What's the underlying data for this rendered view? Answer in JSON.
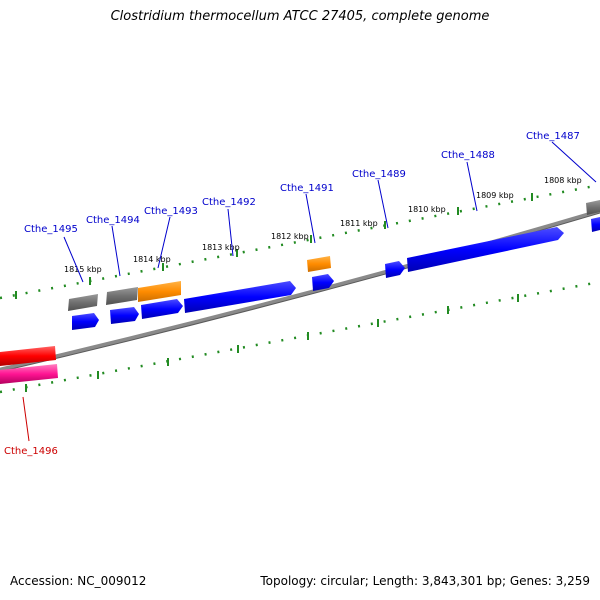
{
  "title": "Clostridium thermocellum ATCC 27405, complete genome",
  "footer": {
    "accession": "Accession: NC_009012",
    "summary": "Topology: circular; Length: 3,843,301 bp; Genes: 3,259"
  },
  "colors": {
    "backbone": "#808080",
    "tick": "#228B22",
    "cds_forward": "#0000ff",
    "cds_reverse_gray": "#777777",
    "cds_orange": "#ff8c00",
    "gene_red": "#ff0000",
    "gene_pink": "#ff1493",
    "label_blue": "#0000cc",
    "label_red": "#cc0000"
  },
  "ticks_kbp": [
    "1815 kbp",
    "1814 kbp",
    "1813 kbp",
    "1812 kbp",
    "1811 kbp",
    "1810 kbp",
    "1809 kbp",
    "1808 kbp"
  ],
  "genes": [
    {
      "label": "Cthe_1495",
      "color": "blue"
    },
    {
      "label": "Cthe_1494",
      "color": "blue"
    },
    {
      "label": "Cthe_1493",
      "color": "blue"
    },
    {
      "label": "Cthe_1492",
      "color": "blue"
    },
    {
      "label": "Cthe_1491",
      "color": "blue"
    },
    {
      "label": "Cthe_1489",
      "color": "blue"
    },
    {
      "label": "Cthe_1488",
      "color": "blue"
    },
    {
      "label": "Cthe_1487",
      "color": "blue"
    },
    {
      "label": "Cthe_1496",
      "color": "red"
    }
  ]
}
